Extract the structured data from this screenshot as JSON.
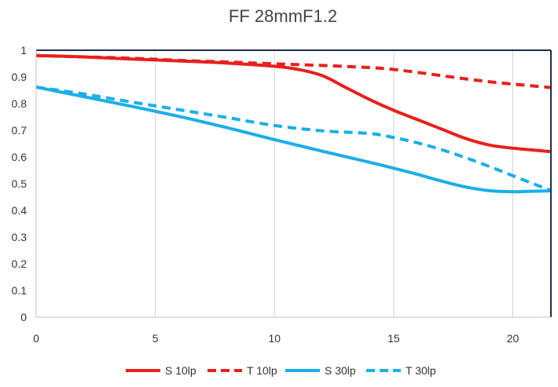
{
  "chart_data": {
    "type": "line",
    "title": "FF  28mmF1.2",
    "xlabel": "",
    "ylabel": "",
    "xlim": [
      0,
      21.6
    ],
    "ylim": [
      0,
      1
    ],
    "x_ticks": [
      0,
      5,
      10,
      15,
      20
    ],
    "y_ticks": [
      0,
      0.1,
      0.2,
      0.3,
      0.4,
      0.5,
      0.6,
      0.7,
      0.8,
      0.9,
      1
    ],
    "y_tick_labels": [
      "0",
      "0.1",
      "0.2",
      "0.3",
      "0.4",
      "0.5",
      "0.6",
      "0.7",
      "0.8",
      "0.9",
      "1"
    ],
    "grid": "vertical",
    "legend_position": "bottom",
    "series": [
      {
        "name": "S 10lp",
        "color": "#e8201c",
        "dash": "solid",
        "x": [
          0,
          2,
          4,
          6,
          8,
          10,
          11,
          12,
          13,
          14,
          15,
          16,
          17,
          18,
          19,
          20,
          21,
          21.6
        ],
        "y": [
          0.98,
          0.975,
          0.967,
          0.96,
          0.952,
          0.94,
          0.928,
          0.905,
          0.86,
          0.815,
          0.775,
          0.74,
          0.705,
          0.67,
          0.645,
          0.633,
          0.625,
          0.62
        ]
      },
      {
        "name": "T 10lp",
        "color": "#e8201c",
        "dash": "dashed",
        "x": [
          0,
          2,
          4,
          6,
          8,
          10,
          12,
          14,
          15,
          16,
          17,
          18,
          19,
          20,
          21,
          21.6
        ],
        "y": [
          0.98,
          0.975,
          0.97,
          0.962,
          0.956,
          0.949,
          0.943,
          0.935,
          0.928,
          0.917,
          0.905,
          0.893,
          0.882,
          0.873,
          0.865,
          0.86
        ]
      },
      {
        "name": "S 30lp",
        "color": "#1aaee8",
        "dash": "solid",
        "x": [
          0,
          2,
          4,
          6,
          8,
          10,
          12,
          14,
          15,
          16,
          17,
          18,
          19,
          20,
          21,
          21.6
        ],
        "y": [
          0.862,
          0.826,
          0.79,
          0.752,
          0.71,
          0.665,
          0.622,
          0.58,
          0.558,
          0.535,
          0.51,
          0.488,
          0.474,
          0.47,
          0.472,
          0.473
        ]
      },
      {
        "name": "T 30lp",
        "color": "#1aaee8",
        "dash": "dashed",
        "x": [
          0,
          2,
          4,
          6,
          8,
          10,
          12,
          14,
          15,
          16,
          17,
          18,
          19,
          20,
          21,
          21.6
        ],
        "y": [
          0.862,
          0.836,
          0.806,
          0.777,
          0.748,
          0.718,
          0.698,
          0.688,
          0.673,
          0.653,
          0.628,
          0.598,
          0.565,
          0.53,
          0.495,
          0.475
        ]
      }
    ]
  }
}
